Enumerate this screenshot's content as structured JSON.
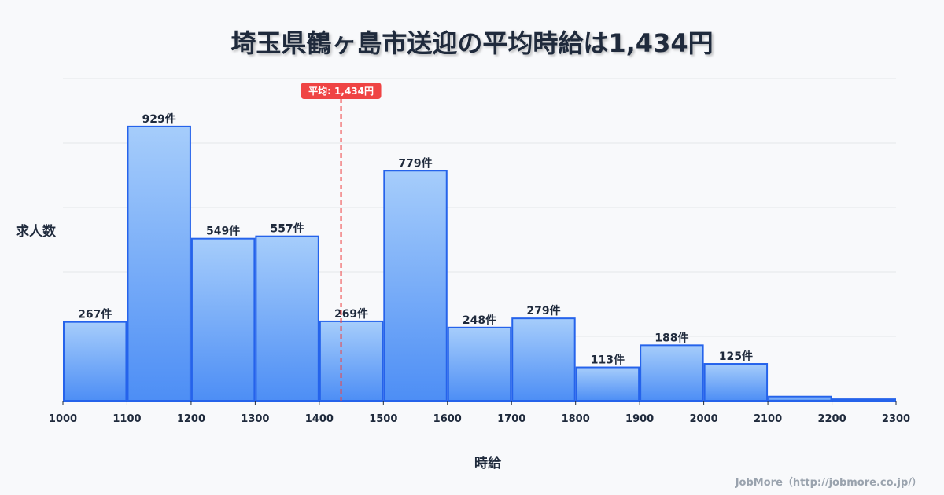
{
  "chart_data": {
    "type": "bar",
    "title": "埼玉県鶴ヶ島市送迎の平均時給は1,434円",
    "xlabel": "時給",
    "ylabel": "求人数",
    "bin_edges": [
      1000,
      1100,
      1200,
      1300,
      1400,
      1500,
      1600,
      1700,
      1800,
      1900,
      2000,
      2100,
      2200,
      2300
    ],
    "values": [
      267,
      929,
      549,
      557,
      269,
      779,
      248,
      279,
      113,
      188,
      125,
      14,
      5
    ],
    "labels": [
      "267件",
      "929件",
      "549件",
      "557件",
      "269件",
      "779件",
      "248件",
      "279件",
      "113件",
      "188件",
      "125件",
      "",
      ""
    ],
    "x_ticks": [
      "1000",
      "1100",
      "1200",
      "1300",
      "1400",
      "1500",
      "1600",
      "1700",
      "1800",
      "1900",
      "2000",
      "2100",
      "2200",
      "2300"
    ],
    "xlim": [
      1000,
      2300
    ],
    "ylim": [
      0,
      1091
    ],
    "grid": true,
    "mean": 1434,
    "mean_label": "平均: 1,434円",
    "colors": {
      "bar_top": "#a6cdfb",
      "bar_bottom": "#4d8ef5",
      "bar_stroke": "#2563eb",
      "mean": "#ef4444",
      "grid": "#e3e6ea"
    }
  },
  "credit": "JobMore（http://jobmore.co.jp/）"
}
